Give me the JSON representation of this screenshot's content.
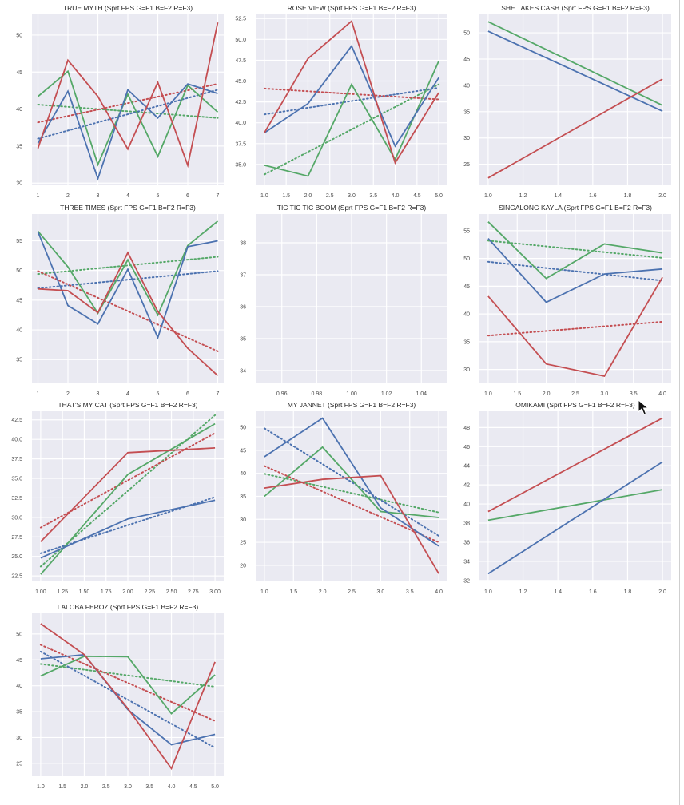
{
  "colors": {
    "F1": "#55a868",
    "F2": "#4c72b0",
    "F3": "#c44e52",
    "panel_bg": "#eaeaf2",
    "grid": "#ffffff"
  },
  "chart_data": [
    {
      "type": "line",
      "title": "TRUE MYTH (Sprt FPS G=F1 B=F2 R=F3)",
      "xlim": [
        0.8,
        7.2
      ],
      "ylim": [
        29.7,
        52.8
      ],
      "xticks": [
        1,
        2,
        3,
        4,
        5,
        6,
        7
      ],
      "xtick_labels": [
        "1",
        "2",
        "3",
        "4",
        "5",
        "6",
        "7"
      ],
      "yticks": [
        30,
        35,
        40,
        45,
        50
      ],
      "ytick_labels": [
        "30",
        "35",
        "40",
        "45",
        "50"
      ],
      "x": [
        1,
        2,
        3,
        4,
        5,
        6,
        7
      ],
      "series": [
        {
          "name": "F1",
          "color": "#55a868",
          "values": [
            41.7,
            45.1,
            32.5,
            42.0,
            33.6,
            43.2,
            39.6
          ]
        },
        {
          "name": "F2",
          "color": "#4c72b0",
          "values": [
            35.4,
            42.4,
            30.6,
            42.6,
            38.8,
            43.4,
            42.1
          ]
        },
        {
          "name": "F3",
          "color": "#c44e52",
          "values": [
            34.7,
            46.6,
            41.7,
            34.6,
            43.6,
            32.4,
            51.7
          ]
        }
      ],
      "trendlines": [
        {
          "name": "F1 trend",
          "color": "#55a868",
          "values": [
            40.6,
            38.8
          ]
        },
        {
          "name": "F2 trend",
          "color": "#4c72b0",
          "values": [
            36.0,
            42.6
          ]
        },
        {
          "name": "F3 trend",
          "color": "#c44e52",
          "values": [
            38.2,
            43.4
          ]
        }
      ]
    },
    {
      "type": "line",
      "title": "ROSE VIEW (Sprt FPS G=F1 B=F2 R=F3)",
      "xlim": [
        0.8,
        5.2
      ],
      "ylim": [
        32.5,
        53.0
      ],
      "xticks": [
        1.0,
        1.5,
        2.0,
        2.5,
        3.0,
        3.5,
        4.0,
        4.5,
        5.0
      ],
      "xtick_labels": [
        "1.0",
        "1.5",
        "2.0",
        "2.5",
        "3.0",
        "3.5",
        "4.0",
        "4.5",
        "5.0"
      ],
      "yticks": [
        35.0,
        37.5,
        40.0,
        42.5,
        45.0,
        47.5,
        50.0,
        52.5
      ],
      "ytick_labels": [
        "35.0",
        "37.5",
        "40.0",
        "42.5",
        "45.0",
        "47.5",
        "50.0",
        "52.5"
      ],
      "x": [
        1,
        2,
        3,
        4,
        5
      ],
      "series": [
        {
          "name": "F1",
          "color": "#55a868",
          "values": [
            34.9,
            33.6,
            44.6,
            35.6,
            47.4
          ]
        },
        {
          "name": "F2",
          "color": "#4c72b0",
          "values": [
            38.8,
            42.3,
            49.2,
            37.2,
            45.4
          ]
        },
        {
          "name": "F3",
          "color": "#c44e52",
          "values": [
            38.8,
            47.7,
            52.2,
            35.2,
            43.6
          ]
        }
      ],
      "trendlines": [
        {
          "name": "F1 trend",
          "color": "#55a868",
          "values": [
            33.8,
            44.6
          ]
        },
        {
          "name": "F2 trend",
          "color": "#4c72b0",
          "values": [
            41.0,
            44.2
          ]
        },
        {
          "name": "F3 trend",
          "color": "#c44e52",
          "values": [
            44.1,
            42.8
          ]
        }
      ]
    },
    {
      "type": "line",
      "title": "SHE TAKES CASH (Sprt FPS G=F1 B=F2 R=F3)",
      "xlim": [
        0.95,
        2.05
      ],
      "ylim": [
        21.0,
        53.5
      ],
      "xticks": [
        1.0,
        1.2,
        1.4,
        1.6,
        1.8,
        2.0
      ],
      "xtick_labels": [
        "1.0",
        "1.2",
        "1.4",
        "1.6",
        "1.8",
        "2.0"
      ],
      "yticks": [
        25,
        30,
        35,
        40,
        45,
        50
      ],
      "ytick_labels": [
        "25",
        "30",
        "35",
        "40",
        "45",
        "50"
      ],
      "x": [
        1,
        2
      ],
      "series": [
        {
          "name": "F1",
          "color": "#55a868",
          "values": [
            52.1,
            36.2
          ]
        },
        {
          "name": "F2",
          "color": "#4c72b0",
          "values": [
            50.3,
            35.1
          ]
        },
        {
          "name": "F3",
          "color": "#c44e52",
          "values": [
            22.4,
            41.2
          ]
        }
      ],
      "trendlines": []
    },
    {
      "type": "line",
      "title": "THREE TIMES (Sprt FPS G=F1 B=F2 R=F3)",
      "xlim": [
        0.8,
        7.2
      ],
      "ylim": [
        31.0,
        59.5
      ],
      "xticks": [
        1,
        2,
        3,
        4,
        5,
        6,
        7
      ],
      "xtick_labels": [
        "1",
        "2",
        "3",
        "4",
        "5",
        "6",
        "7"
      ],
      "yticks": [
        35,
        40,
        45,
        50,
        55
      ],
      "ytick_labels": [
        "35",
        "40",
        "45",
        "50",
        "55"
      ],
      "x": [
        1,
        2,
        3,
        4,
        5,
        6,
        7
      ],
      "series": [
        {
          "name": "F1",
          "color": "#55a868",
          "values": [
            56.6,
            50.6,
            42.8,
            51.8,
            42.5,
            54.2,
            58.3
          ]
        },
        {
          "name": "F2",
          "color": "#4c72b0",
          "values": [
            56.5,
            44.1,
            41.0,
            50.2,
            38.7,
            54.0,
            55.0
          ]
        },
        {
          "name": "F3",
          "color": "#c44e52",
          "values": [
            46.9,
            46.6,
            42.9,
            53.0,
            43.1,
            36.9,
            32.3
          ]
        }
      ],
      "trendlines": [
        {
          "name": "F1 trend",
          "color": "#55a868",
          "values": [
            49.4,
            52.3
          ]
        },
        {
          "name": "F2 trend",
          "color": "#4c72b0",
          "values": [
            47.0,
            49.9
          ]
        },
        {
          "name": "F3 trend",
          "color": "#c44e52",
          "values": [
            49.9,
            36.4
          ]
        }
      ]
    },
    {
      "type": "line",
      "title": "TIC TIC TIC BOOM (Sprt FPS G=F1 B=F2 R=F3)",
      "xlim": [
        0.945,
        1.055
      ],
      "ylim": [
        33.6,
        38.9
      ],
      "xticks": [
        0.96,
        0.98,
        1.0,
        1.02,
        1.04
      ],
      "xtick_labels": [
        "0.96",
        "0.98",
        "1.00",
        "1.02",
        "1.04"
      ],
      "yticks": [
        34,
        35,
        36,
        37,
        38
      ],
      "ytick_labels": [
        "34",
        "35",
        "36",
        "37",
        "38"
      ],
      "x": [],
      "series": [],
      "trendlines": []
    },
    {
      "type": "line",
      "title": "SINGALONG KAYLA (Sprt FPS G=F1 B=F2 R=F3)",
      "xlim": [
        0.85,
        4.15
      ],
      "ylim": [
        27.5,
        58.0
      ],
      "xticks": [
        1.0,
        1.5,
        2.0,
        2.5,
        3.0,
        3.5,
        4.0
      ],
      "xtick_labels": [
        "1.0",
        "1.5",
        "2.0",
        "2.5",
        "3.0",
        "3.5",
        "4.0"
      ],
      "yticks": [
        30,
        35,
        40,
        45,
        50,
        55
      ],
      "ytick_labels": [
        "30",
        "35",
        "40",
        "45",
        "50",
        "55"
      ],
      "x": [
        1,
        2,
        3,
        4
      ],
      "series": [
        {
          "name": "F1",
          "color": "#55a868",
          "values": [
            56.6,
            46.4,
            52.6,
            51.0
          ]
        },
        {
          "name": "F2",
          "color": "#4c72b0",
          "values": [
            53.6,
            42.1,
            47.2,
            48.1
          ]
        },
        {
          "name": "F3",
          "color": "#c44e52",
          "values": [
            43.2,
            31.0,
            28.8,
            46.6
          ]
        }
      ],
      "trendlines": [
        {
          "name": "F1 trend",
          "color": "#55a868",
          "values": [
            53.2,
            50.1
          ]
        },
        {
          "name": "F2 trend",
          "color": "#4c72b0",
          "values": [
            49.4,
            46.0
          ]
        },
        {
          "name": "F3 trend",
          "color": "#c44e52",
          "values": [
            36.1,
            38.6
          ]
        }
      ]
    },
    {
      "type": "line",
      "title": "THAT'S MY CAT (Sprt FPS G=F1 B=F2 R=F3)",
      "xlim": [
        0.9,
        3.1
      ],
      "ylim": [
        21.8,
        43.6
      ],
      "xticks": [
        1.0,
        1.25,
        1.5,
        1.75,
        2.0,
        2.25,
        2.5,
        2.75,
        3.0
      ],
      "xtick_labels": [
        "1.00",
        "1.25",
        "1.50",
        "1.75",
        "2.00",
        "2.25",
        "2.50",
        "2.75",
        "3.00"
      ],
      "yticks": [
        22.5,
        25.0,
        27.5,
        30.0,
        32.5,
        35.0,
        37.5,
        40.0,
        42.5
      ],
      "ytick_labels": [
        "22.5",
        "25.0",
        "27.5",
        "30.0",
        "32.5",
        "35.0",
        "37.5",
        "40.0",
        "42.5"
      ],
      "x": [
        1,
        2,
        3
      ],
      "series": [
        {
          "name": "F1",
          "color": "#55a868",
          "values": [
            22.7,
            35.5,
            42.0
          ]
        },
        {
          "name": "F2",
          "color": "#4c72b0",
          "values": [
            24.8,
            29.8,
            32.2
          ]
        },
        {
          "name": "F3",
          "color": "#c44e52",
          "values": [
            26.9,
            38.3,
            38.9
          ]
        }
      ],
      "trendlines": [
        {
          "name": "F1 trend",
          "color": "#55a868",
          "values": [
            23.7,
            43.1
          ]
        },
        {
          "name": "F2 trend",
          "color": "#4c72b0",
          "values": [
            25.4,
            32.6
          ]
        },
        {
          "name": "F3 trend",
          "color": "#c44e52",
          "values": [
            28.7,
            40.8
          ]
        }
      ]
    },
    {
      "type": "line",
      "title": "MY JANNET (Sprt FPS G=F1 B=F2 R=F3)",
      "xlim": [
        0.85,
        4.15
      ],
      "ylim": [
        16.5,
        53.5
      ],
      "xticks": [
        1.0,
        1.5,
        2.0,
        2.5,
        3.0,
        3.5,
        4.0
      ],
      "xtick_labels": [
        "1.0",
        "1.5",
        "2.0",
        "2.5",
        "3.0",
        "3.5",
        "4.0"
      ],
      "yticks": [
        20,
        25,
        30,
        35,
        40,
        45,
        50
      ],
      "ytick_labels": [
        "20",
        "25",
        "30",
        "35",
        "40",
        "45",
        "50"
      ],
      "x": [
        1,
        2,
        3,
        4
      ],
      "series": [
        {
          "name": "F1",
          "color": "#55a868",
          "values": [
            35.0,
            45.7,
            31.7,
            30.4
          ]
        },
        {
          "name": "F2",
          "color": "#4c72b0",
          "values": [
            43.6,
            52.0,
            32.5,
            24.2
          ]
        },
        {
          "name": "F3",
          "color": "#c44e52",
          "values": [
            36.8,
            38.7,
            39.5,
            18.2
          ]
        }
      ],
      "trendlines": [
        {
          "name": "F1 trend",
          "color": "#55a868",
          "values": [
            39.9,
            31.5
          ]
        },
        {
          "name": "F2 trend",
          "color": "#4c72b0",
          "values": [
            49.8,
            26.4
          ]
        },
        {
          "name": "F3 trend",
          "color": "#c44e52",
          "values": [
            41.6,
            25.0
          ]
        }
      ]
    },
    {
      "type": "line",
      "title": "OMIKAMI (Sprt FPS G=F1 B=F2 R=F3)",
      "xlim": [
        0.95,
        2.05
      ],
      "ylim": [
        31.9,
        49.7
      ],
      "xticks": [
        1.0,
        1.2,
        1.4,
        1.6,
        1.8,
        2.0
      ],
      "xtick_labels": [
        "1.0",
        "1.2",
        "1.4",
        "1.6",
        "1.8",
        "2.0"
      ],
      "yticks": [
        32,
        34,
        36,
        38,
        40,
        42,
        44,
        46,
        48
      ],
      "ytick_labels": [
        "32",
        "34",
        "36",
        "38",
        "40",
        "42",
        "44",
        "46",
        "48"
      ],
      "x": [
        1,
        2
      ],
      "series": [
        {
          "name": "F1",
          "color": "#55a868",
          "values": [
            38.3,
            41.5
          ]
        },
        {
          "name": "F2",
          "color": "#4c72b0",
          "values": [
            32.7,
            44.4
          ]
        },
        {
          "name": "F3",
          "color": "#c44e52",
          "values": [
            39.2,
            49.0
          ]
        }
      ],
      "trendlines": []
    },
    {
      "type": "line",
      "title": "LALOBA FEROZ (Sprt FPS G=F1 B=F2 R=F3)",
      "xlim": [
        0.8,
        5.2
      ],
      "ylim": [
        22.5,
        54.0
      ],
      "xticks": [
        1.0,
        1.5,
        2.0,
        2.5,
        3.0,
        3.5,
        4.0,
        4.5,
        5.0
      ],
      "xtick_labels": [
        "1.0",
        "1.5",
        "2.0",
        "2.5",
        "3.0",
        "3.5",
        "4.0",
        "4.5",
        "5.0"
      ],
      "yticks": [
        25,
        30,
        35,
        40,
        45,
        50
      ],
      "ytick_labels": [
        "25",
        "30",
        "35",
        "40",
        "45",
        "50"
      ],
      "x": [
        1,
        2,
        3,
        4,
        5
      ],
      "series": [
        {
          "name": "F1",
          "color": "#55a868",
          "values": [
            41.9,
            45.7,
            45.6,
            34.6,
            42.1
          ]
        },
        {
          "name": "F2",
          "color": "#4c72b0",
          "values": [
            45.2,
            46.0,
            35.4,
            28.6,
            30.6
          ]
        },
        {
          "name": "F3",
          "color": "#c44e52",
          "values": [
            52.0,
            46.0,
            35.6,
            24.0,
            44.6
          ]
        }
      ],
      "trendlines": [
        {
          "name": "F1 trend",
          "color": "#55a868",
          "values": [
            44.2,
            39.8
          ]
        },
        {
          "name": "F2 trend",
          "color": "#4c72b0",
          "values": [
            46.6,
            28.0
          ]
        },
        {
          "name": "F3 trend",
          "color": "#c44e52",
          "values": [
            47.9,
            33.2
          ]
        }
      ]
    }
  ]
}
